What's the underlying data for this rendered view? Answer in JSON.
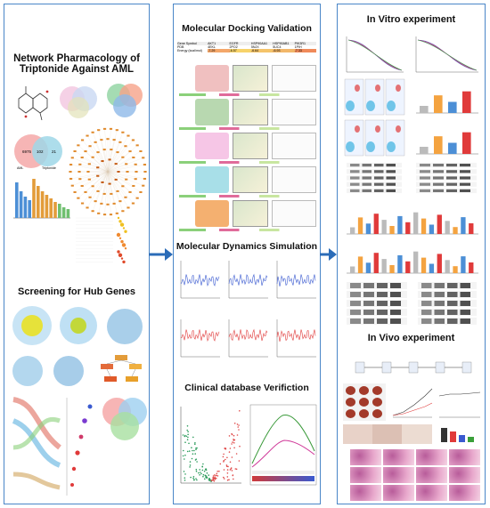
{
  "titles": {
    "network_line1": "Network Pharmacology of",
    "network_line2": "Triptonide Against AML",
    "hub_genes": "Screening for Hub Genes",
    "docking": "Molecular Docking Validation",
    "dynamics": "Molecular Dynamics Simulation",
    "clinical": "Clinical database Verifiction",
    "in_vitro": "In Vitro experiment",
    "in_vivo": "In Vivo experiment"
  },
  "venn": {
    "left_label": "AML",
    "right_label": "Triptonide",
    "left_count": "6975",
    "overlap_count": "102",
    "right_count": "21"
  },
  "docking_table": {
    "header": [
      "Gene Symbol",
      "AKT1",
      "EGFR",
      "HSP90AA1",
      "HSP90AB1",
      "PIK3R1"
    ],
    "pdb": [
      "PDB",
      "4EKL",
      "2PO2",
      "5NJX",
      "5UC4",
      "1PIH"
    ],
    "energy": [
      "Energy (kcal/mol)",
      "-7.29",
      "-6.57",
      "-6.64",
      "-6.93",
      "-7.33"
    ]
  },
  "colors": {
    "panel_border": "#4a86c8",
    "arrow": "#2b6cb8",
    "network_node": "#e08a2c",
    "venn_left": "#f4a8a8",
    "venn_right": "#9fd7e8"
  }
}
